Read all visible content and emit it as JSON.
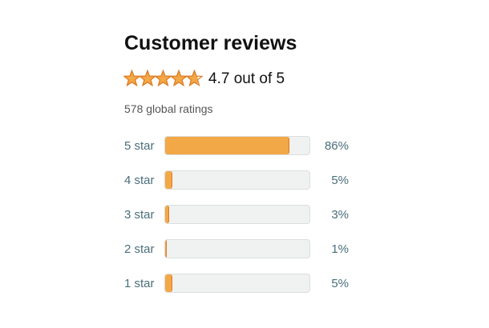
{
  "header": {
    "title": "Customer reviews"
  },
  "rating": {
    "value": 4.7,
    "label": "4.7 out of 5"
  },
  "total": "578 global ratings",
  "rows": [
    {
      "label": "5 star",
      "value": 86,
      "value_label": "86%"
    },
    {
      "label": "4 star",
      "value": 5,
      "value_label": "5%"
    },
    {
      "label": "3 star",
      "value": 3,
      "value_label": "3%"
    },
    {
      "label": "2 star",
      "value": 1,
      "value_label": "1%"
    },
    {
      "label": "1 star",
      "value": 5,
      "value_label": "5%"
    }
  ]
}
